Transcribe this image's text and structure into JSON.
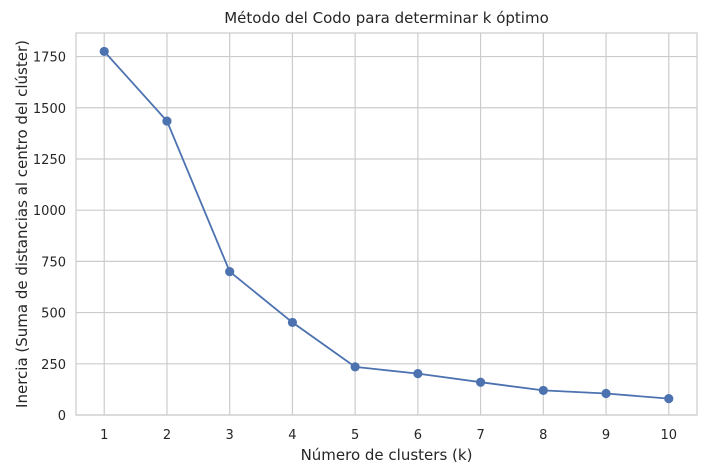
{
  "chart_data": {
    "type": "line",
    "title": "Método del Codo para determinar k óptimo",
    "xlabel": "Número de clusters (k)",
    "ylabel": "Inercia (Suma de distancias al centro del clúster)",
    "x": [
      1,
      2,
      3,
      4,
      5,
      6,
      7,
      8,
      9,
      10
    ],
    "x_tick_labels": [
      "1",
      "2",
      "3",
      "4",
      "5",
      "6",
      "7",
      "8",
      "9",
      "10"
    ],
    "y_ticks": [
      0,
      250,
      500,
      750,
      1000,
      1250,
      1500,
      1750
    ],
    "y_tick_labels": [
      "0",
      "250",
      "500",
      "750",
      "1000",
      "1250",
      "1500",
      "1750"
    ],
    "xlim": [
      0.55,
      10.45
    ],
    "ylim": [
      0,
      1865
    ],
    "series": [
      {
        "values": [
          1775,
          1435,
          700,
          452,
          235,
          202,
          160,
          120,
          105,
          80
        ],
        "marker": "circle",
        "color": "#4c72b0"
      }
    ],
    "grid": true,
    "legend": "none",
    "colors": {
      "grid": "#cccccc",
      "axes_edge": "#cccccc",
      "text": "#262626"
    }
  }
}
